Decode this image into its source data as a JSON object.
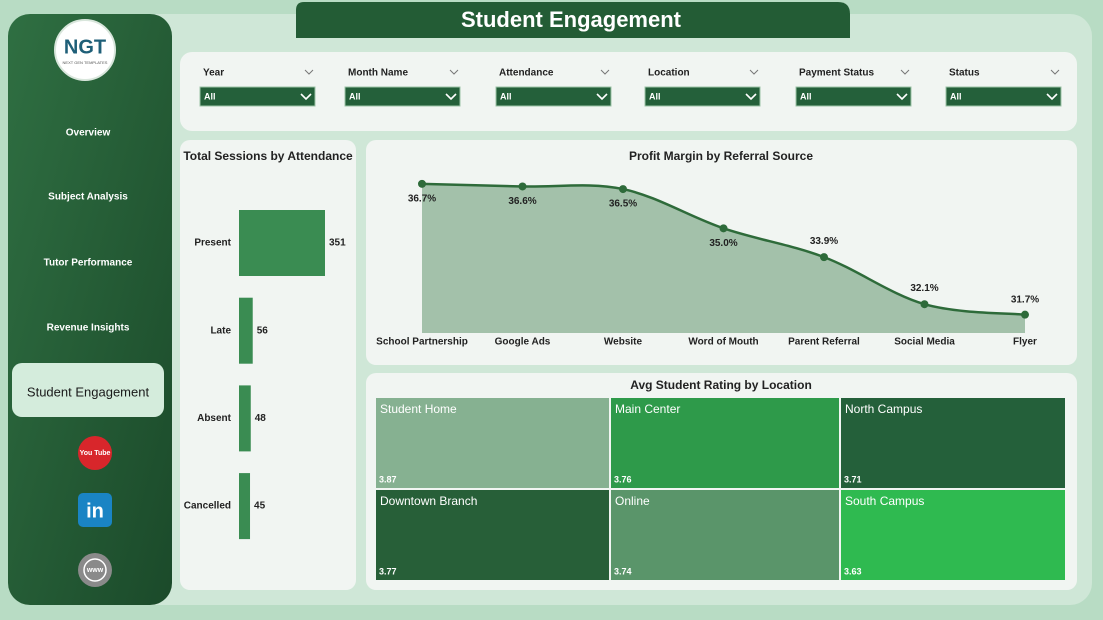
{
  "logo": {
    "text": "NGT",
    "subtext": "NEXT GEN TEMPLATES"
  },
  "header": {
    "title": "Student Engagement"
  },
  "nav": [
    {
      "label": "Overview"
    },
    {
      "label": "Subject Analysis"
    },
    {
      "label": "Tutor Performance"
    },
    {
      "label": "Revenue Insights"
    },
    {
      "label": "Student Engagement",
      "active": true
    }
  ],
  "icons": [
    "You Tube",
    "in",
    "www"
  ],
  "filters": [
    {
      "label": "Year",
      "value": "All"
    },
    {
      "label": "Month Name",
      "value": "All"
    },
    {
      "label": "Attendance",
      "value": "All"
    },
    {
      "label": "Location",
      "value": "All"
    },
    {
      "label": "Payment Status",
      "value": "All"
    },
    {
      "label": "Status",
      "value": "All"
    }
  ],
  "chart_data": [
    {
      "type": "bar",
      "orientation": "horizontal",
      "title": "Total Sessions by Attendance",
      "categories": [
        "Present",
        "Late",
        "Absent",
        "Cancelled"
      ],
      "values": [
        351,
        56,
        48,
        45
      ],
      "color": "#3a8c52"
    },
    {
      "type": "area",
      "title": "Profit Margin by Referral Source",
      "categories": [
        "School Partnership",
        "Google Ads",
        "Website",
        "Word of Mouth",
        "Parent Referral",
        "Social Media",
        "Flyer"
      ],
      "values": [
        36.7,
        36.6,
        36.5,
        35.0,
        33.9,
        32.1,
        31.7
      ],
      "value_labels": [
        "36.7%",
        "36.6%",
        "36.5%",
        "35.0%",
        "33.9%",
        "32.1%",
        "31.7%"
      ],
      "ylim": [
        31,
        37
      ],
      "color": "#2e6b3a",
      "fill": "#a3c1aa"
    },
    {
      "type": "treemap",
      "title": "Avg Student Rating by Location",
      "categories": [
        "Student Home",
        "Main Center",
        "North Campus",
        "Downtown Branch",
        "Online",
        "South Campus"
      ],
      "values": [
        3.87,
        3.76,
        3.71,
        3.77,
        3.74,
        3.63
      ],
      "colors": [
        "#86b191",
        "#2e9a4a",
        "#24603a",
        "#275f38",
        "#5a956a",
        "#2fba50"
      ]
    }
  ]
}
